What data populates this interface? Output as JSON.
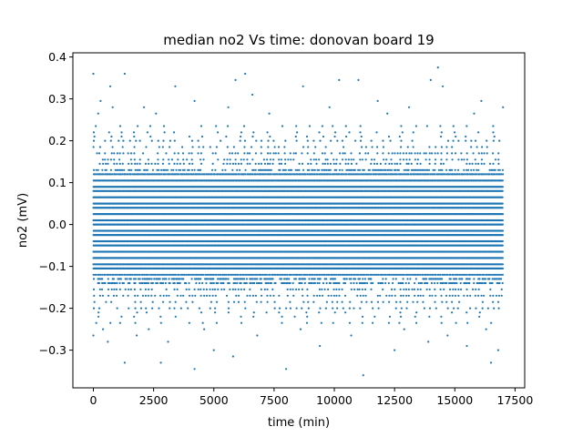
{
  "chart_data": {
    "type": "scatter",
    "title": "median no2 Vs time: donovan board 19",
    "xlabel": "time (min)",
    "ylabel": "no2 (mV)",
    "xlim": [
      -850,
      17900
    ],
    "ylim": [
      -0.39,
      0.41
    ],
    "xticks": [
      0,
      2500,
      5000,
      7500,
      10000,
      12500,
      15000,
      17500
    ],
    "xtick_labels": [
      "0",
      "2500",
      "5000",
      "7500",
      "10000",
      "12500",
      "15000",
      "17500"
    ],
    "yticks": [
      -0.3,
      -0.2,
      -0.1,
      0.0,
      0.1,
      0.2,
      0.3,
      0.4
    ],
    "ytick_labels": [
      "−0.3",
      "−0.2",
      "−0.1",
      "0.0",
      "0.1",
      "0.2",
      "0.3",
      "0.4"
    ],
    "grid": false,
    "legend": "none",
    "marker_color": "#1f77b4",
    "x_range_of_data": [
      0,
      17000
    ],
    "y_levels_approx": [
      -0.36,
      -0.345,
      -0.33,
      -0.315,
      -0.3,
      -0.29,
      -0.28,
      -0.265,
      -0.25,
      -0.235,
      -0.22,
      -0.21,
      -0.2,
      -0.185,
      -0.17,
      -0.155,
      -0.14,
      -0.13,
      -0.12,
      -0.105,
      -0.095,
      -0.08,
      -0.065,
      -0.05,
      -0.04,
      -0.025,
      -0.015,
      0.0,
      0.01,
      0.025,
      0.04,
      0.05,
      0.065,
      0.08,
      0.09,
      0.105,
      0.12,
      0.13,
      0.145,
      0.155,
      0.17,
      0.185,
      0.2,
      0.21,
      0.22,
      0.235,
      0.25,
      0.265,
      0.28,
      0.295,
      0.31,
      0.33,
      0.345,
      0.36,
      0.375
    ],
    "series": [
      {
        "points": [
          [
            0,
            0.36
          ],
          [
            1300,
            0.36
          ],
          [
            6300,
            0.36
          ],
          [
            14300,
            0.375
          ],
          [
            5900,
            0.345
          ],
          [
            10200,
            0.345
          ],
          [
            11000,
            0.345
          ],
          [
            14000,
            0.345
          ],
          [
            700,
            0.33
          ],
          [
            3400,
            0.33
          ],
          [
            8700,
            0.33
          ],
          [
            14500,
            0.33
          ],
          [
            300,
            0.295
          ],
          [
            4200,
            0.295
          ],
          [
            6600,
            0.31
          ],
          [
            11800,
            0.295
          ],
          [
            16100,
            0.295
          ],
          [
            800,
            0.28
          ],
          [
            2100,
            0.28
          ],
          [
            5600,
            0.28
          ],
          [
            9800,
            0.28
          ],
          [
            13100,
            0.28
          ],
          [
            17000,
            0.28
          ],
          [
            200,
            0.265
          ],
          [
            2600,
            0.265
          ],
          [
            7300,
            0.265
          ],
          [
            12200,
            0.265
          ],
          [
            15800,
            0.265
          ],
          [
            1300,
            -0.33
          ],
          [
            2800,
            -0.33
          ],
          [
            4200,
            -0.345
          ],
          [
            5800,
            -0.315
          ],
          [
            8000,
            -0.345
          ],
          [
            11200,
            -0.36
          ],
          [
            16500,
            -0.33
          ],
          [
            16800,
            -0.3
          ],
          [
            12500,
            -0.3
          ],
          [
            5000,
            -0.3
          ],
          [
            600,
            -0.28
          ],
          [
            3100,
            -0.28
          ],
          [
            9400,
            -0.29
          ],
          [
            13900,
            -0.28
          ],
          [
            15500,
            -0.29
          ],
          [
            0,
            -0.265
          ],
          [
            1800,
            -0.265
          ],
          [
            6800,
            -0.265
          ],
          [
            10700,
            -0.265
          ],
          [
            14700,
            -0.265
          ],
          [
            400,
            -0.25
          ],
          [
            2300,
            -0.25
          ],
          [
            4600,
            -0.25
          ],
          [
            8600,
            -0.25
          ],
          [
            12900,
            -0.25
          ],
          [
            16300,
            -0.25
          ]
        ]
      }
    ]
  }
}
